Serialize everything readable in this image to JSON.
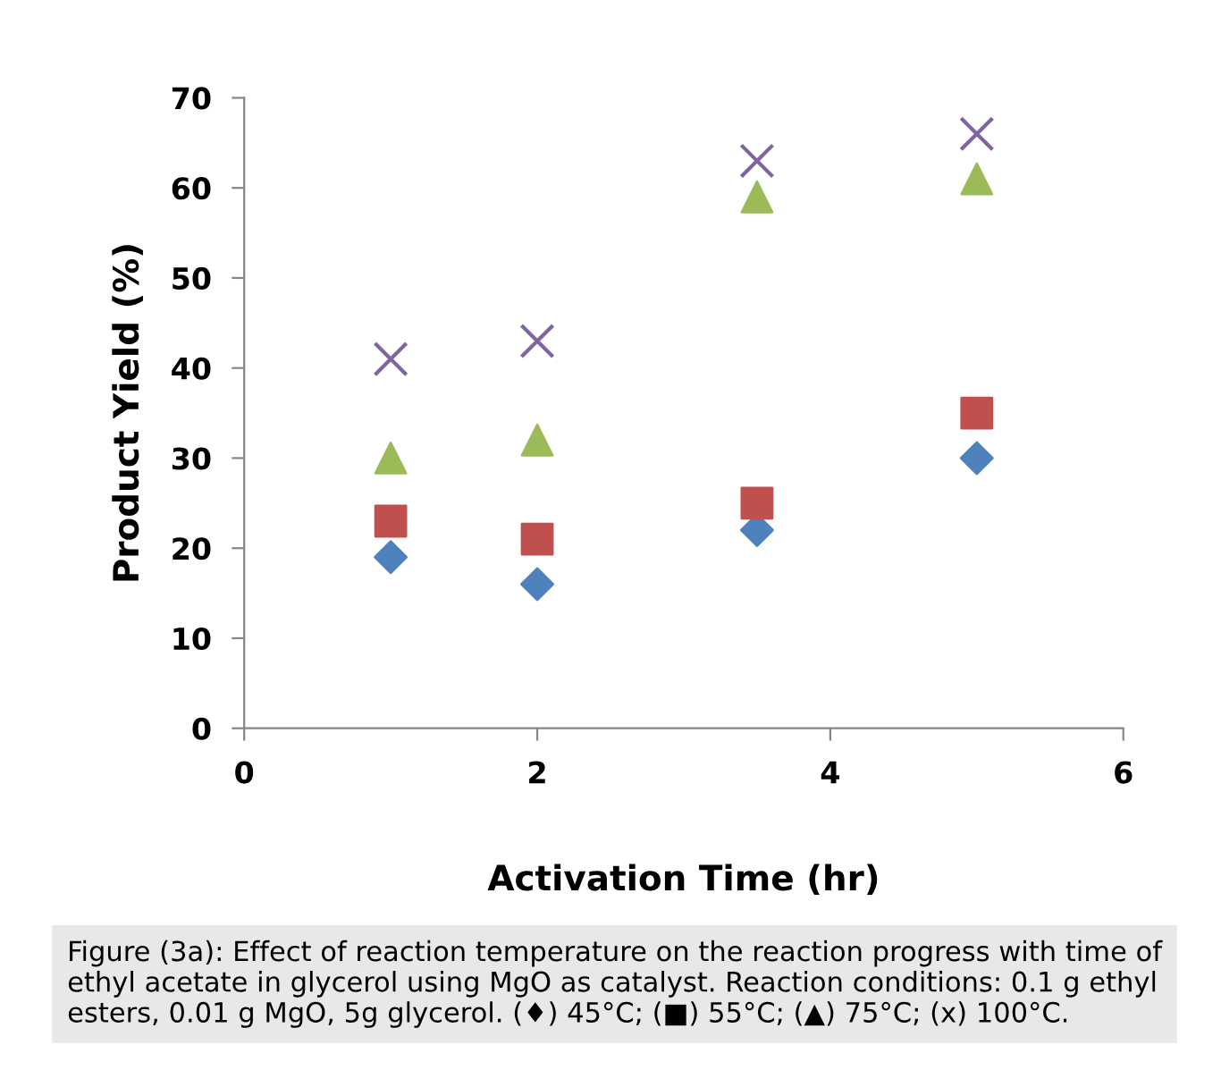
{
  "chart_data": {
    "type": "scatter",
    "xlabel": "Activation Time (hr)",
    "ylabel": "Product Yield (%)",
    "x": [
      1,
      2,
      3.5,
      5
    ],
    "series": [
      {
        "color": "#4f81bd",
        "marker": "diamond",
        "values": [
          19,
          16,
          22,
          30
        ]
      },
      {
        "color": "#c0504d",
        "marker": "square",
        "values": [
          23,
          21,
          25,
          35
        ]
      },
      {
        "color": "#9bbb59",
        "marker": "triangle",
        "values": [
          30,
          32,
          59,
          61
        ]
      },
      {
        "color": "#8064a2",
        "marker": "cross",
        "values": [
          41,
          43,
          63,
          66
        ]
      }
    ],
    "xlim": [
      0,
      6
    ],
    "xticks": [
      0,
      2,
      4,
      6
    ],
    "ylim": [
      0,
      70
    ],
    "yticks": [
      0,
      10,
      20,
      30,
      40,
      50,
      60,
      70
    ],
    "grid": false,
    "legend": false,
    "annotations": [
      "Figure (3a): Effect of reaction temperature on the reaction progress with time of ethyl acetate in glycerol using MgO as catalyst. Reaction conditions: 0.1 g ethyl esters, 0.01 g MgO, 5g glycerol. (♦) 45°C; (■) 55°C; (▲) 75°C; (x) 100°C."
    ]
  }
}
